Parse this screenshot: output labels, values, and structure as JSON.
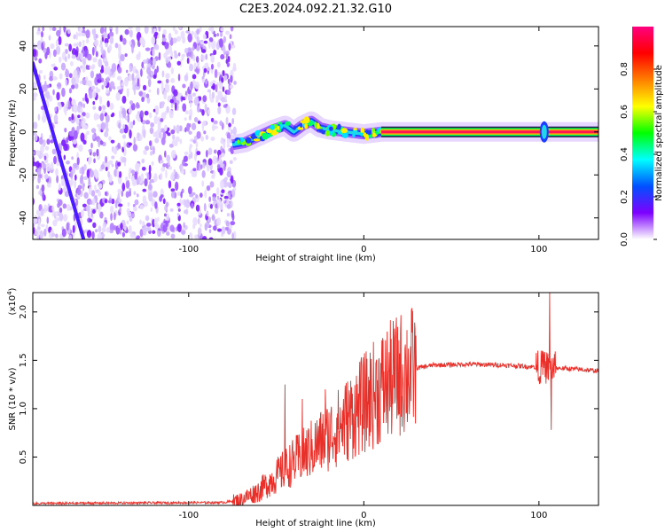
{
  "title": "C2E3.2024.092.21.32.G10",
  "chart_data": [
    {
      "type": "heatmap",
      "xlabel": "Height of straight line (km)",
      "ylabel": "Frequency (Hz)",
      "xlim": [
        -189,
        134
      ],
      "ylim": [
        -50,
        49
      ],
      "xticks": [
        -100,
        0,
        100
      ],
      "yticks": [
        -40,
        -20,
        0,
        20,
        40
      ],
      "colorbar": {
        "label": "Normalized spectral amplitude",
        "range": [
          0,
          1
        ],
        "ticks": [
          "0.0",
          "0.2",
          "0.4",
          "0.6",
          "0.8"
        ],
        "colormap": "rainbow",
        "colors": [
          "#ffffff",
          "#7d00ff",
          "#0050ff",
          "#00ffff",
          "#00ff00",
          "#ffff00",
          "#ff7f00",
          "#ff0000",
          "#ff0080"
        ]
      },
      "noise_region_x": [
        -189,
        -75
      ],
      "drift_line": {
        "from": [
          -189,
          32
        ],
        "to": [
          -160,
          -50
        ]
      },
      "ridge": [
        {
          "x": -75,
          "y": -6
        },
        {
          "x": -68,
          "y": -5
        },
        {
          "x": -60,
          "y": -2
        },
        {
          "x": -52,
          "y": 1
        },
        {
          "x": -45,
          "y": 3
        },
        {
          "x": -40,
          "y": 0
        },
        {
          "x": -35,
          "y": 3
        },
        {
          "x": -30,
          "y": 5
        },
        {
          "x": -25,
          "y": 2
        },
        {
          "x": -20,
          "y": 1
        },
        {
          "x": -10,
          "y": 0
        },
        {
          "x": 0,
          "y": -1
        },
        {
          "x": 10,
          "y": 0
        },
        {
          "x": 134,
          "y": 0
        }
      ],
      "stable_line_x": [
        10,
        134
      ],
      "burst_x": 103
    },
    {
      "type": "line",
      "xlabel": "Height of straight line (km)",
      "ylabel": "SNR (10 * v/v)",
      "multiplier": "(x10",
      "multiplier_exp": "4",
      "xlim": [
        -189,
        134
      ],
      "ylim": [
        0,
        2.2
      ],
      "xticks": [
        -100,
        0,
        100
      ],
      "yticks": [
        "0.5",
        "1.0",
        "1.5",
        "2.0"
      ],
      "color": "#e8302a",
      "envelope": [
        {
          "x": -189,
          "y": 0.02
        },
        {
          "x": -80,
          "y": 0.03
        },
        {
          "x": -70,
          "y": 0.06
        },
        {
          "x": -60,
          "y": 0.15
        },
        {
          "x": -50,
          "y": 0.3
        },
        {
          "x": -40,
          "y": 0.45
        },
        {
          "x": -30,
          "y": 0.58
        },
        {
          "x": -20,
          "y": 0.72
        },
        {
          "x": -10,
          "y": 0.88
        },
        {
          "x": 0,
          "y": 1.05
        },
        {
          "x": 10,
          "y": 1.22
        },
        {
          "x": 20,
          "y": 1.35
        },
        {
          "x": 30,
          "y": 1.42
        },
        {
          "x": 40,
          "y": 1.45
        },
        {
          "x": 60,
          "y": 1.46
        },
        {
          "x": 80,
          "y": 1.45
        },
        {
          "x": 100,
          "y": 1.43
        },
        {
          "x": 120,
          "y": 1.41
        },
        {
          "x": 134,
          "y": 1.39
        }
      ],
      "spikes": [
        {
          "x": -45,
          "y": 1.25
        },
        {
          "x": -35,
          "y": 1.1
        },
        {
          "x": -22,
          "y": 1.2
        },
        {
          "x": -15,
          "y": 0.95
        },
        {
          "x": 102,
          "y": 1.6
        },
        {
          "x": 106,
          "y": 2.2
        },
        {
          "x": 107,
          "y": 0.78
        }
      ]
    }
  ]
}
